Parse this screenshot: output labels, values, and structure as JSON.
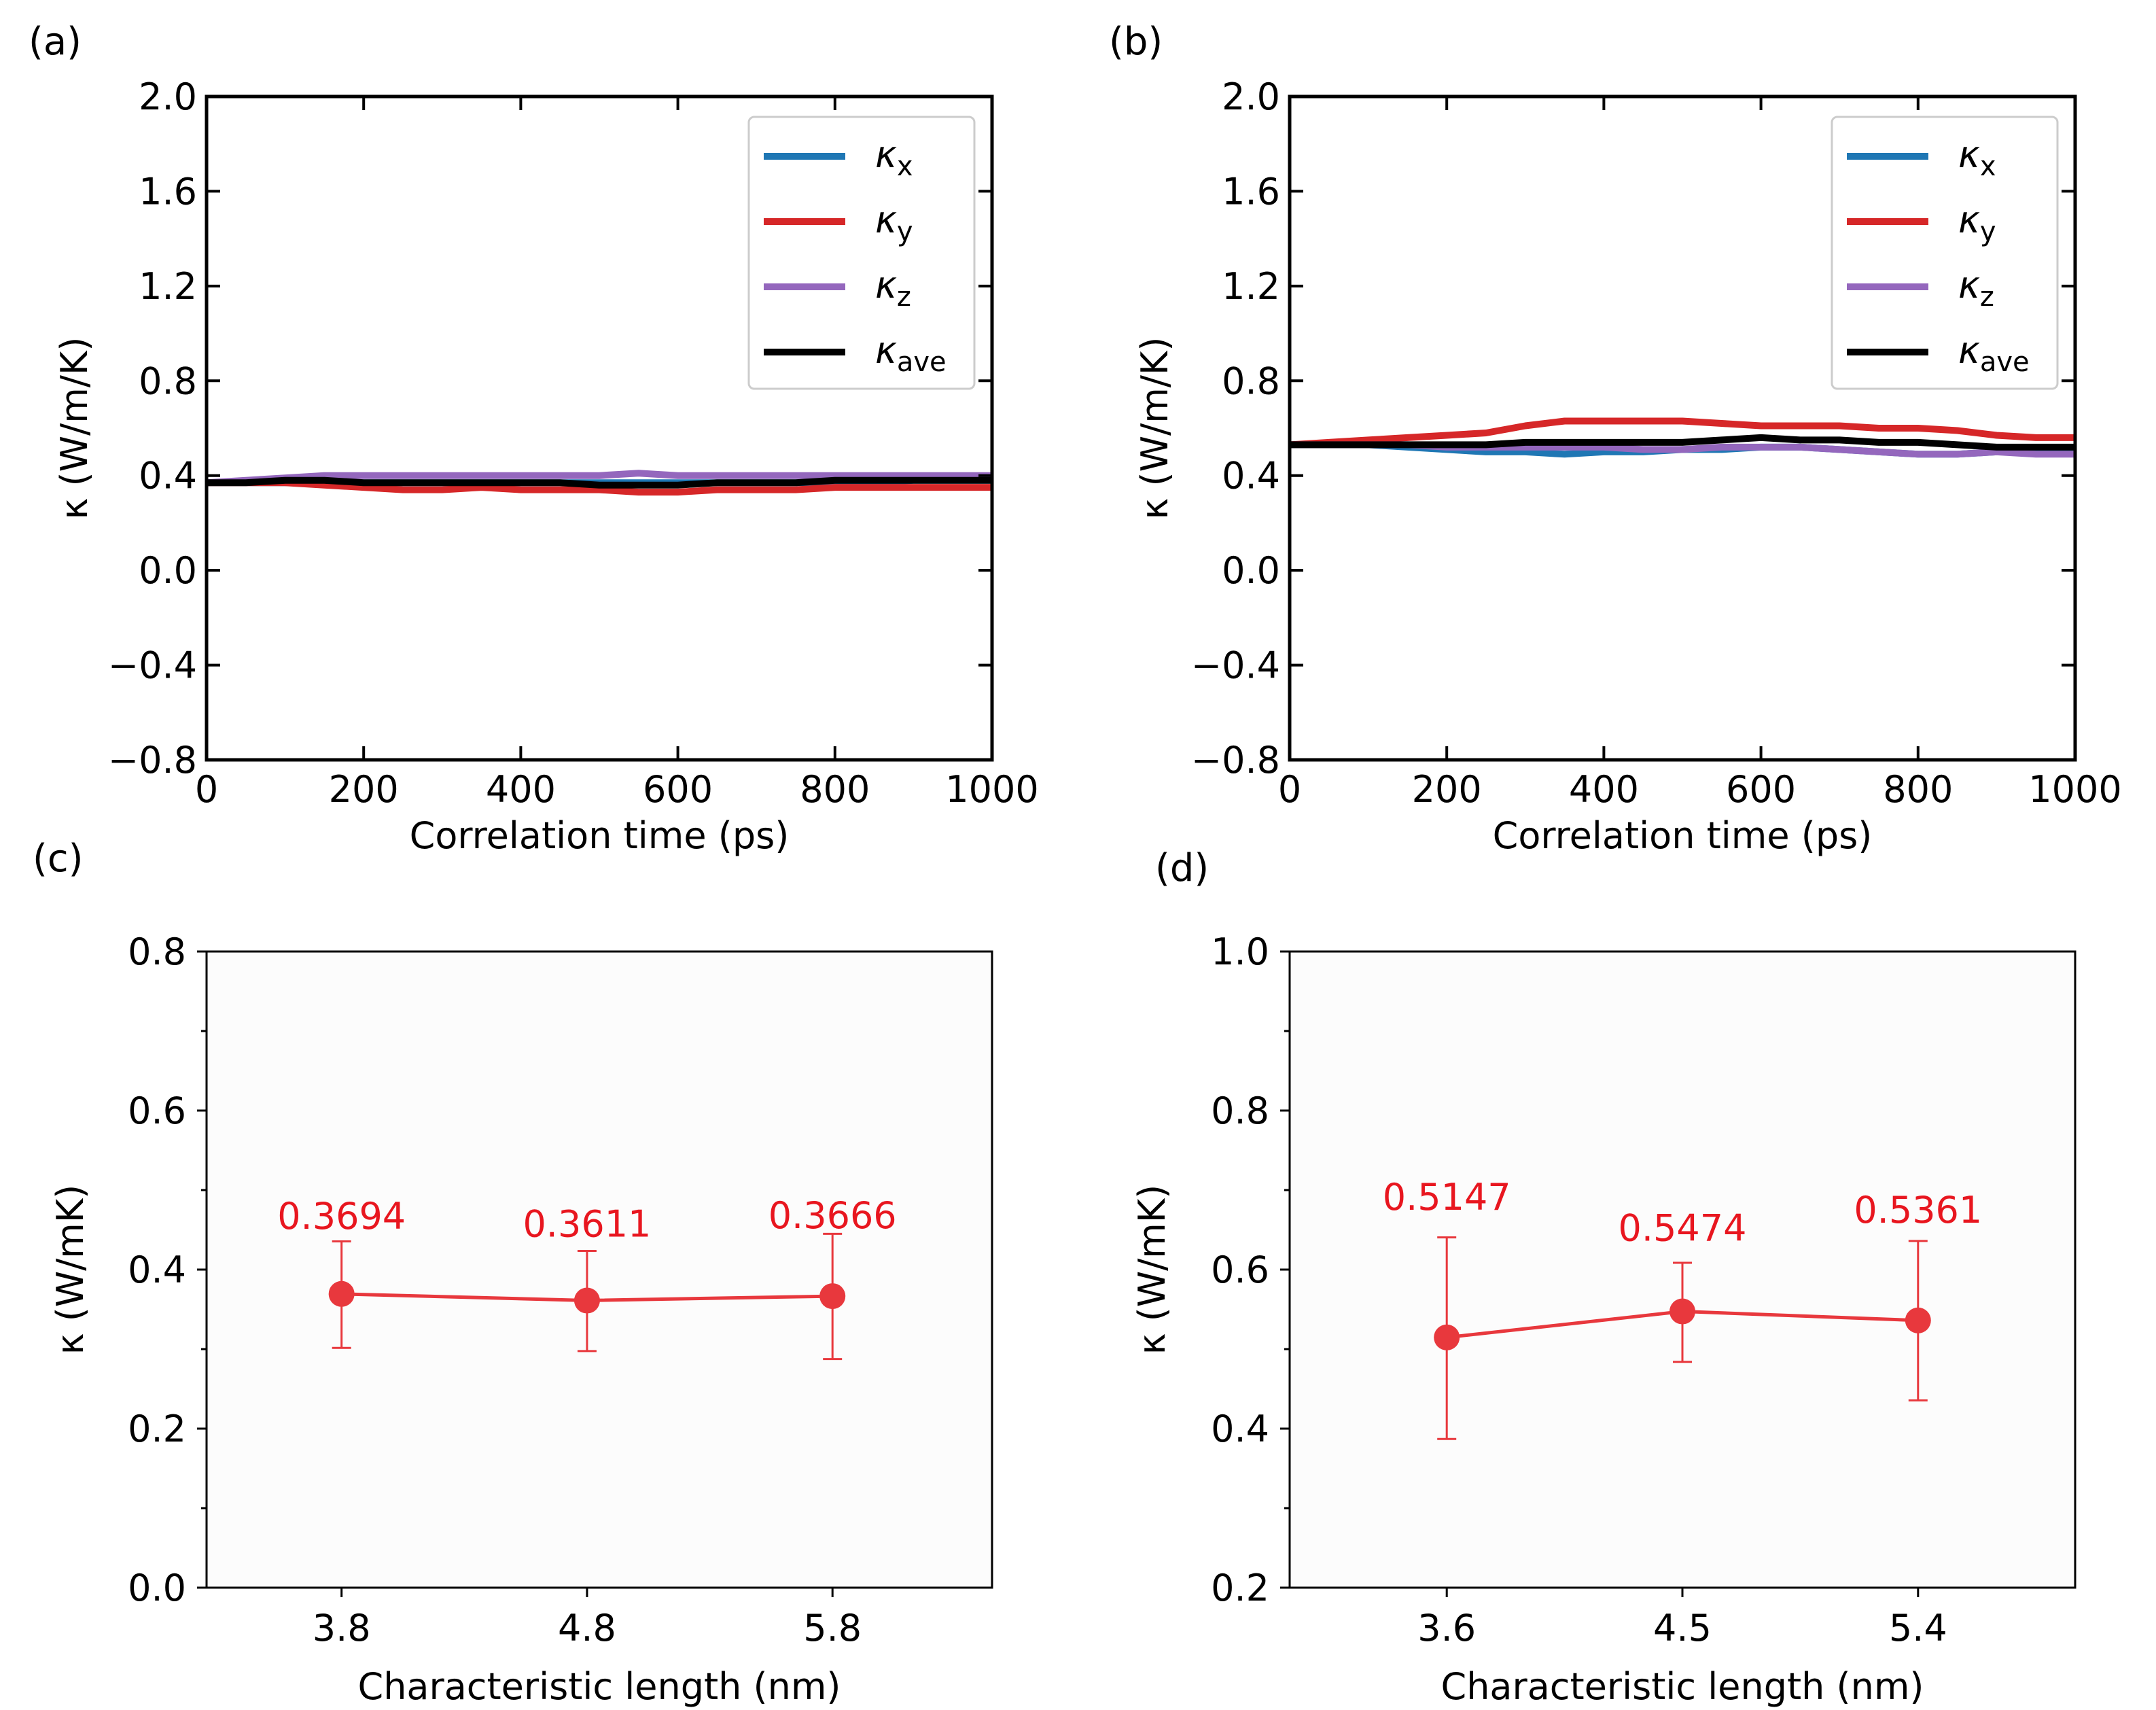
{
  "chart_data": [
    {
      "panel_label": "(a)",
      "type": "line",
      "xlabel": "Correlation time (ps)",
      "ylabel": "κ (W/m/K)",
      "xlim": [
        0,
        1000
      ],
      "ylim": [
        -0.8,
        2.0
      ],
      "xticks": [
        "0",
        "200",
        "400",
        "600",
        "800",
        "1000"
      ],
      "yticks": [
        "−0.8",
        "−0.4",
        "0.0",
        "0.4",
        "0.8",
        "1.2",
        "1.6",
        "2.0"
      ],
      "grid": false,
      "legend_position": "top-right",
      "x": [
        0,
        50,
        100,
        150,
        200,
        250,
        300,
        350,
        400,
        450,
        500,
        550,
        600,
        650,
        700,
        750,
        800,
        850,
        900,
        950,
        1000
      ],
      "series": [
        {
          "name": "κx",
          "legend_base": "κ",
          "legend_sub": "x",
          "color": "#1f77b4",
          "values": [
            0.37,
            0.37,
            0.37,
            0.37,
            0.37,
            0.37,
            0.37,
            0.37,
            0.37,
            0.37,
            0.37,
            0.37,
            0.37,
            0.37,
            0.37,
            0.37,
            0.37,
            0.37,
            0.38,
            0.38,
            0.38
          ]
        },
        {
          "name": "κy",
          "legend_base": "κ",
          "legend_sub": "y",
          "color": "#d62728",
          "values": [
            0.37,
            0.37,
            0.37,
            0.36,
            0.35,
            0.34,
            0.34,
            0.35,
            0.34,
            0.34,
            0.34,
            0.33,
            0.33,
            0.34,
            0.34,
            0.34,
            0.35,
            0.35,
            0.35,
            0.35,
            0.35
          ]
        },
        {
          "name": "κz",
          "legend_base": "κ",
          "legend_sub": "z",
          "color": "#9467bd",
          "values": [
            0.37,
            0.38,
            0.39,
            0.4,
            0.4,
            0.4,
            0.4,
            0.4,
            0.4,
            0.4,
            0.4,
            0.41,
            0.4,
            0.4,
            0.4,
            0.4,
            0.4,
            0.4,
            0.4,
            0.4,
            0.4
          ]
        },
        {
          "name": "κave",
          "legend_base": "κ",
          "legend_sub": "ave",
          "color": "#000000",
          "values": [
            0.37,
            0.37,
            0.38,
            0.38,
            0.37,
            0.37,
            0.37,
            0.37,
            0.37,
            0.37,
            0.36,
            0.36,
            0.36,
            0.37,
            0.37,
            0.37,
            0.38,
            0.38,
            0.38,
            0.38,
            0.38
          ]
        }
      ]
    },
    {
      "panel_label": "(b)",
      "type": "line",
      "xlabel": "Correlation time (ps)",
      "ylabel": "κ (W/m/K)",
      "xlim": [
        0,
        1000
      ],
      "ylim": [
        -0.8,
        2.0
      ],
      "xticks": [
        "0",
        "200",
        "400",
        "600",
        "800",
        "1000"
      ],
      "yticks": [
        "−0.8",
        "−0.4",
        "0.0",
        "0.4",
        "0.8",
        "1.2",
        "1.6",
        "2.0"
      ],
      "grid": false,
      "legend_position": "top-right",
      "x": [
        0,
        50,
        100,
        150,
        200,
        250,
        300,
        350,
        400,
        450,
        500,
        550,
        600,
        650,
        700,
        750,
        800,
        850,
        900,
        950,
        1000
      ],
      "series": [
        {
          "name": "κx",
          "legend_base": "κ",
          "legend_sub": "x",
          "color": "#1f77b4",
          "values": [
            0.53,
            0.53,
            0.53,
            0.52,
            0.51,
            0.5,
            0.5,
            0.49,
            0.5,
            0.5,
            0.51,
            0.51,
            0.52,
            0.52,
            0.51,
            0.5,
            0.49,
            0.49,
            0.5,
            0.5,
            0.5
          ]
        },
        {
          "name": "κy",
          "legend_base": "κ",
          "legend_sub": "y",
          "color": "#d62728",
          "values": [
            0.53,
            0.54,
            0.55,
            0.56,
            0.57,
            0.58,
            0.61,
            0.63,
            0.63,
            0.63,
            0.63,
            0.62,
            0.61,
            0.61,
            0.61,
            0.6,
            0.6,
            0.59,
            0.57,
            0.56,
            0.56
          ]
        },
        {
          "name": "κz",
          "legend_base": "κ",
          "legend_sub": "z",
          "color": "#9467bd",
          "values": [
            0.53,
            0.53,
            0.53,
            0.53,
            0.52,
            0.52,
            0.52,
            0.52,
            0.52,
            0.51,
            0.51,
            0.52,
            0.52,
            0.52,
            0.51,
            0.5,
            0.49,
            0.49,
            0.5,
            0.49,
            0.49
          ]
        },
        {
          "name": "κave",
          "legend_base": "κ",
          "legend_sub": "ave",
          "color": "#000000",
          "values": [
            0.53,
            0.53,
            0.53,
            0.53,
            0.53,
            0.53,
            0.54,
            0.54,
            0.54,
            0.54,
            0.54,
            0.55,
            0.56,
            0.55,
            0.55,
            0.54,
            0.54,
            0.53,
            0.52,
            0.52,
            0.52
          ]
        }
      ]
    },
    {
      "panel_label": "(c)",
      "type": "scatter",
      "xlabel": "Characteristic length (nm)",
      "ylabel": "κ (W/mK)",
      "categories": [
        "3.8",
        "4.8",
        "5.8"
      ],
      "xlim": [
        3.25,
        6.45
      ],
      "ylim": [
        0.0,
        0.8
      ],
      "yticks": [
        "0.0",
        "0.2",
        "0.4",
        "0.6",
        "0.8"
      ],
      "color": "#e8383d",
      "values": [
        0.3694,
        0.3611,
        0.3666
      ],
      "errors_lower": [
        0.3015,
        0.2975,
        0.2875
      ],
      "errors_upper": [
        0.4355,
        0.4235,
        0.445
      ],
      "data_labels": [
        "0.3694",
        "0.3611",
        "0.3666"
      ]
    },
    {
      "panel_label": "(d)",
      "type": "scatter",
      "xlabel": "Characteristic length (nm)",
      "ylabel": "κ (W/mK)",
      "categories": [
        "3.6",
        "4.5",
        "5.4"
      ],
      "xlim": [
        3.0,
        6.0
      ],
      "ylim": [
        0.2,
        1.0
      ],
      "yticks": [
        "0.2",
        "0.4",
        "0.6",
        "0.8",
        "1.0"
      ],
      "color": "#e8383d",
      "values": [
        0.5147,
        0.5474,
        0.5361
      ],
      "errors_lower": [
        0.387,
        0.484,
        0.4355
      ],
      "errors_upper": [
        0.6405,
        0.6085,
        0.636
      ],
      "data_labels": [
        "0.5147",
        "0.5474",
        "0.5361"
      ]
    }
  ]
}
